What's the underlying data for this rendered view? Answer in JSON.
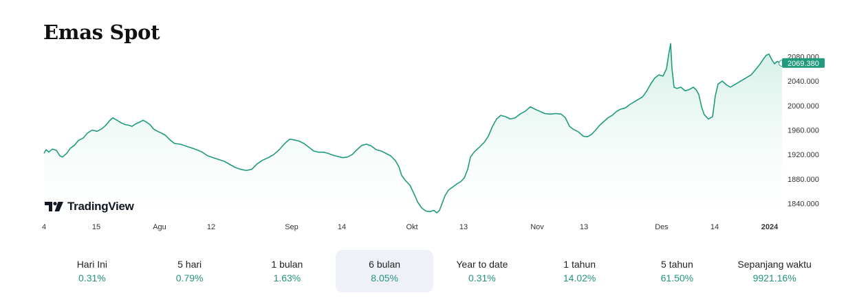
{
  "title": "Emas Spot",
  "brand": {
    "name": "TradingView",
    "icon": "tradingview-logo-icon"
  },
  "colors": {
    "line": "#1f9a7c",
    "accent": "#22957c",
    "fill_top": "#cfeee4",
    "fill_bottom": "#ffffff"
  },
  "chart_data": {
    "type": "area",
    "title": "Emas Spot",
    "xlabel": "",
    "ylabel": "",
    "x_range": [
      0,
      1073
    ],
    "ylim": [
      1815,
      2105
    ],
    "y_ticks": [
      "2080.000",
      "2040.000",
      "2000.000",
      "1960.000",
      "1920.000",
      "1880.000",
      "1840.000"
    ],
    "y_tick_values": [
      2080,
      2040,
      2000,
      1960,
      1920,
      1880,
      1840
    ],
    "x_tick_labels": [
      "4",
      "15",
      "Agu",
      "12",
      "Sep",
      "14",
      "Okt",
      "13",
      "Nov",
      "13",
      "Des",
      "14",
      "2024"
    ],
    "x_tick_positions": [
      0,
      76,
      168,
      243,
      360,
      433,
      535,
      610,
      717,
      785,
      898,
      975,
      1055
    ],
    "last_value": 2069.38,
    "last_value_label": "2069.380",
    "points": [
      [
        0,
        1922
      ],
      [
        3,
        1928
      ],
      [
        7,
        1924
      ],
      [
        12,
        1929
      ],
      [
        18,
        1927
      ],
      [
        23,
        1918
      ],
      [
        27,
        1916
      ],
      [
        33,
        1922
      ],
      [
        38,
        1930
      ],
      [
        44,
        1935
      ],
      [
        50,
        1943
      ],
      [
        57,
        1947
      ],
      [
        63,
        1955
      ],
      [
        70,
        1960
      ],
      [
        77,
        1958
      ],
      [
        84,
        1962
      ],
      [
        90,
        1968
      ],
      [
        95,
        1975
      ],
      [
        100,
        1980
      ],
      [
        106,
        1976
      ],
      [
        112,
        1972
      ],
      [
        118,
        1969
      ],
      [
        123,
        1968
      ],
      [
        128,
        1966
      ],
      [
        133,
        1970
      ],
      [
        139,
        1973
      ],
      [
        144,
        1976
      ],
      [
        149,
        1973
      ],
      [
        154,
        1969
      ],
      [
        159,
        1962
      ],
      [
        165,
        1958
      ],
      [
        171,
        1955
      ],
      [
        177,
        1951
      ],
      [
        183,
        1944
      ],
      [
        190,
        1938
      ],
      [
        198,
        1937
      ],
      [
        206,
        1934
      ],
      [
        214,
        1931
      ],
      [
        222,
        1928
      ],
      [
        230,
        1924
      ],
      [
        238,
        1918
      ],
      [
        246,
        1915
      ],
      [
        254,
        1912
      ],
      [
        262,
        1909
      ],
      [
        270,
        1904
      ],
      [
        278,
        1899
      ],
      [
        286,
        1896
      ],
      [
        294,
        1894
      ],
      [
        302,
        1896
      ],
      [
        310,
        1905
      ],
      [
        318,
        1911
      ],
      [
        326,
        1915
      ],
      [
        334,
        1920
      ],
      [
        342,
        1928
      ],
      [
        350,
        1938
      ],
      [
        357,
        1945
      ],
      [
        364,
        1944
      ],
      [
        371,
        1942
      ],
      [
        378,
        1938
      ],
      [
        385,
        1932
      ],
      [
        392,
        1926
      ],
      [
        399,
        1924
      ],
      [
        406,
        1924
      ],
      [
        413,
        1922
      ],
      [
        420,
        1919
      ],
      [
        427,
        1917
      ],
      [
        434,
        1915
      ],
      [
        441,
        1916
      ],
      [
        448,
        1920
      ],
      [
        455,
        1928
      ],
      [
        462,
        1935
      ],
      [
        469,
        1937
      ],
      [
        476,
        1934
      ],
      [
        483,
        1928
      ],
      [
        490,
        1926
      ],
      [
        497,
        1922
      ],
      [
        504,
        1918
      ],
      [
        511,
        1910
      ],
      [
        516,
        1900
      ],
      [
        520,
        1886
      ],
      [
        526,
        1877
      ],
      [
        532,
        1870
      ],
      [
        538,
        1856
      ],
      [
        543,
        1843
      ],
      [
        549,
        1833
      ],
      [
        555,
        1828
      ],
      [
        561,
        1827
      ],
      [
        567,
        1829
      ],
      [
        571,
        1825
      ],
      [
        575,
        1829
      ],
      [
        579,
        1841
      ],
      [
        583,
        1853
      ],
      [
        588,
        1862
      ],
      [
        594,
        1867
      ],
      [
        600,
        1872
      ],
      [
        606,
        1876
      ],
      [
        611,
        1882
      ],
      [
        616,
        1896
      ],
      [
        620,
        1916
      ],
      [
        626,
        1925
      ],
      [
        633,
        1932
      ],
      [
        640,
        1940
      ],
      [
        646,
        1950
      ],
      [
        652,
        1966
      ],
      [
        658,
        1978
      ],
      [
        664,
        1984
      ],
      [
        671,
        1982
      ],
      [
        678,
        1978
      ],
      [
        685,
        1980
      ],
      [
        692,
        1986
      ],
      [
        700,
        1991
      ],
      [
        707,
        1998
      ],
      [
        714,
        1994
      ],
      [
        720,
        1991
      ],
      [
        728,
        1987
      ],
      [
        736,
        1986
      ],
      [
        744,
        1987
      ],
      [
        752,
        1986
      ],
      [
        758,
        1980
      ],
      [
        764,
        1966
      ],
      [
        770,
        1961
      ],
      [
        777,
        1957
      ],
      [
        784,
        1950
      ],
      [
        790,
        1949
      ],
      [
        796,
        1953
      ],
      [
        802,
        1960
      ],
      [
        808,
        1968
      ],
      [
        814,
        1974
      ],
      [
        820,
        1980
      ],
      [
        826,
        1984
      ],
      [
        832,
        1990
      ],
      [
        838,
        1994
      ],
      [
        845,
        1996
      ],
      [
        852,
        2002
      ],
      [
        858,
        2006
      ],
      [
        864,
        2010
      ],
      [
        870,
        2014
      ],
      [
        876,
        2023
      ],
      [
        882,
        2035
      ],
      [
        888,
        2045
      ],
      [
        894,
        2050
      ],
      [
        900,
        2048
      ],
      [
        905,
        2060
      ],
      [
        908,
        2082
      ],
      [
        911,
        2101
      ],
      [
        913,
        2060
      ],
      [
        916,
        2030
      ],
      [
        920,
        2028
      ],
      [
        926,
        2030
      ],
      [
        932,
        2024
      ],
      [
        938,
        2026
      ],
      [
        944,
        2030
      ],
      [
        948,
        2026
      ],
      [
        952,
        2018
      ],
      [
        956,
        1998
      ],
      [
        960,
        1985
      ],
      [
        966,
        1978
      ],
      [
        972,
        1982
      ],
      [
        976,
        2016
      ],
      [
        980,
        2035
      ],
      [
        986,
        2040
      ],
      [
        992,
        2034
      ],
      [
        998,
        2030
      ],
      [
        1004,
        2034
      ],
      [
        1010,
        2038
      ],
      [
        1016,
        2042
      ],
      [
        1022,
        2046
      ],
      [
        1028,
        2050
      ],
      [
        1034,
        2058
      ],
      [
        1040,
        2066
      ],
      [
        1046,
        2076
      ],
      [
        1050,
        2082
      ],
      [
        1054,
        2084
      ],
      [
        1058,
        2075
      ],
      [
        1062,
        2068
      ],
      [
        1066,
        2072
      ],
      [
        1070,
        2070
      ],
      [
        1073,
        2069
      ]
    ]
  },
  "periods": [
    {
      "label": "Hari Ini",
      "value": "0.31%"
    },
    {
      "label": "5 hari",
      "value": "0.79%"
    },
    {
      "label": "1 bulan",
      "value": "1.63%"
    },
    {
      "label": "6 bulan",
      "value": "8.05%",
      "active": true
    },
    {
      "label": "Year to date",
      "value": "0.31%"
    },
    {
      "label": "1 tahun",
      "value": "14.02%"
    },
    {
      "label": "5 tahun",
      "value": "61.50%"
    },
    {
      "label": "Sepanjang waktu",
      "value": "9921.16%"
    }
  ]
}
